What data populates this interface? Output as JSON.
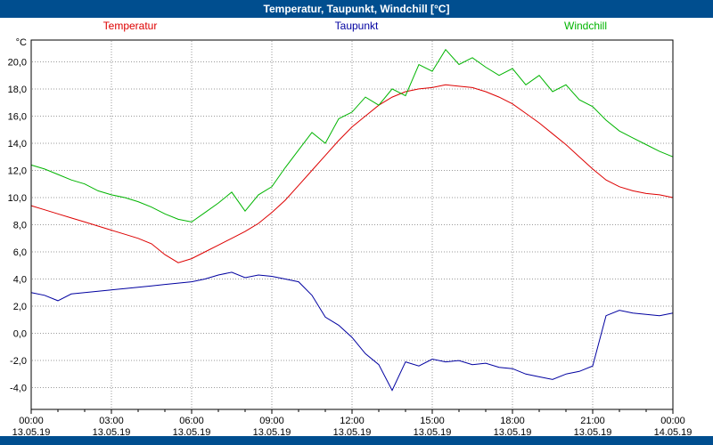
{
  "title": "Temperatur, Taupunkt, Windchill [°C]",
  "colors": {
    "titlebar": "#004e8f",
    "temperatur": "#dd0000",
    "taupunkt": "#0000a0",
    "windchill": "#00b400",
    "grid": "#9a9a9a"
  },
  "legend": [
    {
      "label": "Temperatur",
      "color": "#dd0000"
    },
    {
      "label": "Taupunkt",
      "color": "#0000a0"
    },
    {
      "label": "Windchill",
      "color": "#00b400"
    }
  ],
  "chart_data": {
    "type": "line",
    "title": "Temperatur, Taupunkt, Windchill [°C]",
    "xlabel": "",
    "ylabel": "°C",
    "y_axis_unit": "°C",
    "grid": true,
    "legend_position": "top",
    "xlim": [
      0,
      24
    ],
    "ylim": [
      -5.6,
      21.6
    ],
    "x_hours": [
      0,
      0.5,
      1,
      1.5,
      2,
      2.5,
      3,
      3.5,
      4,
      4.5,
      5,
      5.5,
      6,
      6.5,
      7,
      7.5,
      8,
      8.5,
      9,
      9.5,
      10,
      10.5,
      11,
      11.5,
      12,
      12.5,
      13,
      13.5,
      14,
      14.5,
      15,
      15.5,
      16,
      16.5,
      17,
      17.5,
      18,
      18.5,
      19,
      19.5,
      20,
      20.5,
      21,
      21.5,
      22,
      22.5,
      23,
      23.5,
      24
    ],
    "series": [
      {
        "name": "Temperatur",
        "color": "#dd0000",
        "values": [
          9.4,
          9.1,
          8.8,
          8.5,
          8.2,
          7.9,
          7.6,
          7.3,
          7.0,
          6.6,
          5.8,
          5.2,
          5.5,
          6.0,
          6.5,
          7.0,
          7.5,
          8.1,
          8.9,
          9.8,
          10.9,
          12.0,
          13.1,
          14.2,
          15.2,
          16.0,
          16.8,
          17.4,
          17.8,
          18.0,
          18.1,
          18.3,
          18.2,
          18.1,
          17.8,
          17.4,
          16.9,
          16.2,
          15.5,
          14.7,
          13.9,
          13.0,
          12.1,
          11.3,
          10.8,
          10.5,
          10.3,
          10.2,
          10.0
        ]
      },
      {
        "name": "Taupunkt",
        "color": "#0000a0",
        "values": [
          3.0,
          2.8,
          2.4,
          2.9,
          3.0,
          3.1,
          3.2,
          3.3,
          3.4,
          3.5,
          3.6,
          3.7,
          3.8,
          4.0,
          4.3,
          4.5,
          4.1,
          4.3,
          4.2,
          4.0,
          3.8,
          2.8,
          1.2,
          0.6,
          -0.3,
          -1.5,
          -2.3,
          -4.2,
          -2.1,
          -2.4,
          -1.9,
          -2.1,
          -2.0,
          -2.3,
          -2.2,
          -2.5,
          -2.6,
          -3.0,
          -3.2,
          -3.4,
          -3.0,
          -2.8,
          -2.4,
          1.3,
          1.7,
          1.5,
          1.4,
          1.3,
          1.5
        ]
      },
      {
        "name": "Windchill",
        "color": "#00b400",
        "values": [
          12.4,
          12.1,
          11.7,
          11.3,
          11.0,
          10.5,
          10.2,
          10.0,
          9.7,
          9.3,
          8.8,
          8.4,
          8.2,
          8.9,
          9.6,
          10.4,
          9.0,
          10.2,
          10.8,
          12.2,
          13.5,
          14.8,
          14.0,
          15.8,
          16.3,
          17.4,
          16.8,
          18.0,
          17.5,
          19.8,
          19.3,
          20.9,
          19.8,
          20.3,
          19.6,
          19.0,
          19.5,
          18.3,
          19.0,
          17.8,
          18.3,
          17.2,
          16.7,
          15.7,
          14.9,
          14.4,
          13.9,
          13.4,
          13.0
        ]
      }
    ],
    "yticks": [
      {
        "value": 20,
        "label": "20,0"
      },
      {
        "value": 18,
        "label": "18,0"
      },
      {
        "value": 16,
        "label": "16,0"
      },
      {
        "value": 14,
        "label": "14,0"
      },
      {
        "value": 12,
        "label": "12,0"
      },
      {
        "value": 10,
        "label": "10,0"
      },
      {
        "value": 8,
        "label": "8,0"
      },
      {
        "value": 6,
        "label": "6,0"
      },
      {
        "value": 4,
        "label": "4,0"
      },
      {
        "value": 2,
        "label": "2,0"
      },
      {
        "value": 0,
        "label": "0,0"
      },
      {
        "value": -2,
        "label": "-2,0"
      },
      {
        "value": -4,
        "label": "-4,0"
      }
    ],
    "xticks": [
      {
        "value": 0,
        "time": "00:00",
        "date": "13.05.19"
      },
      {
        "value": 3,
        "time": "03:00",
        "date": "13.05.19"
      },
      {
        "value": 6,
        "time": "06:00",
        "date": "13.05.19"
      },
      {
        "value": 9,
        "time": "09:00",
        "date": "13.05.19"
      },
      {
        "value": 12,
        "time": "12:00",
        "date": "13.05.19"
      },
      {
        "value": 15,
        "time": "15:00",
        "date": "13.05.19"
      },
      {
        "value": 18,
        "time": "18:00",
        "date": "13.05.19"
      },
      {
        "value": 21,
        "time": "21:00",
        "date": "13.05.19"
      },
      {
        "value": 24,
        "time": "00:00",
        "date": "14.05.19"
      }
    ]
  }
}
